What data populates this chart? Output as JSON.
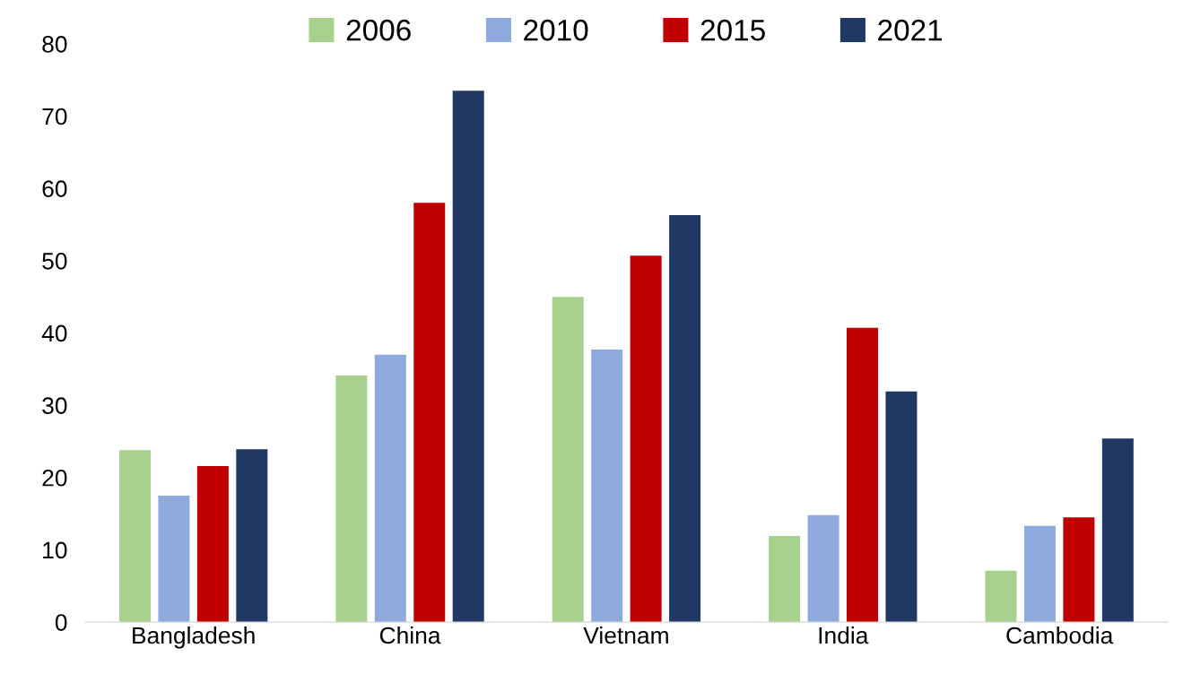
{
  "chart_data": {
    "type": "bar",
    "categories": [
      "Bangladesh",
      "China",
      "Vietnam",
      "India",
      "Cambodia"
    ],
    "series": [
      {
        "name": "2006",
        "color": "#a9d18e",
        "values": [
          23.8,
          34.1,
          45.0,
          11.9,
          7.1
        ]
      },
      {
        "name": "2010",
        "color": "#8faadc",
        "values": [
          17.5,
          37.0,
          37.7,
          14.8,
          13.3
        ]
      },
      {
        "name": "2015",
        "color": "#c00000",
        "values": [
          21.6,
          58.0,
          50.7,
          40.7,
          14.5
        ]
      },
      {
        "name": "2021",
        "color": "#203864",
        "values": [
          23.9,
          73.5,
          56.3,
          31.9,
          25.4
        ]
      }
    ],
    "ylim": [
      0,
      80
    ],
    "yticks": [
      0,
      10,
      20,
      30,
      40,
      50,
      60,
      70,
      80
    ],
    "grid": false,
    "legend": "top"
  }
}
